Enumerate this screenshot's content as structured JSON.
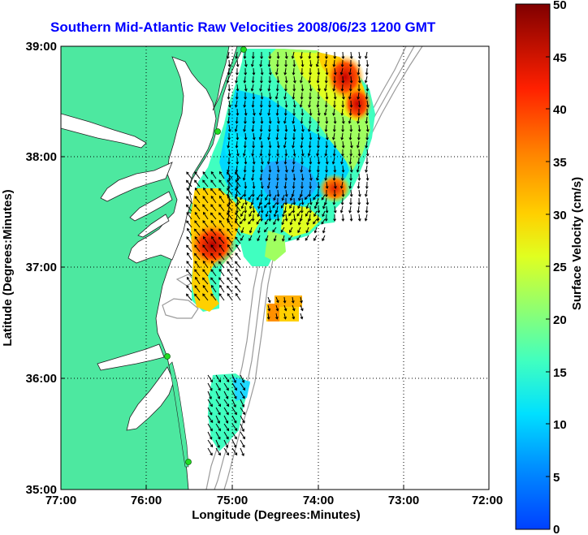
{
  "title": "Southern Mid-Atlantic Raw Velocities 2008/06/23 1200 GMT",
  "x_axis": {
    "label": "Longitude (Degrees:Minutes)",
    "ticks": [
      "77:00",
      "76:00",
      "75:00",
      "74:00",
      "73:00",
      "72:00"
    ]
  },
  "y_axis": {
    "label": "Latitude (Degrees:Minutes)",
    "ticks": [
      "39:00",
      "38:00",
      "37:00",
      "36:00",
      "35:00"
    ]
  },
  "colorbar": {
    "label": "Surface Velocity (cm/s)",
    "ticks": [
      "50",
      "45",
      "40",
      "35",
      "30",
      "25",
      "20",
      "15",
      "10",
      "5",
      "0"
    ],
    "min": 0,
    "max": 50
  },
  "map_extent": {
    "lon_min": -77,
    "lon_max": -72,
    "lat_min": 35,
    "lat_max": 39
  },
  "colors": {
    "land": "#4de8a0",
    "title": "#0000ff",
    "bathymetry": "#999999"
  },
  "features": {
    "land": "US Mid-Atlantic coast (Delmarva, Chesapeake Bay, Virginia, North Carolina)",
    "stations": 4,
    "vector_field": "surface current velocity arrows"
  }
}
